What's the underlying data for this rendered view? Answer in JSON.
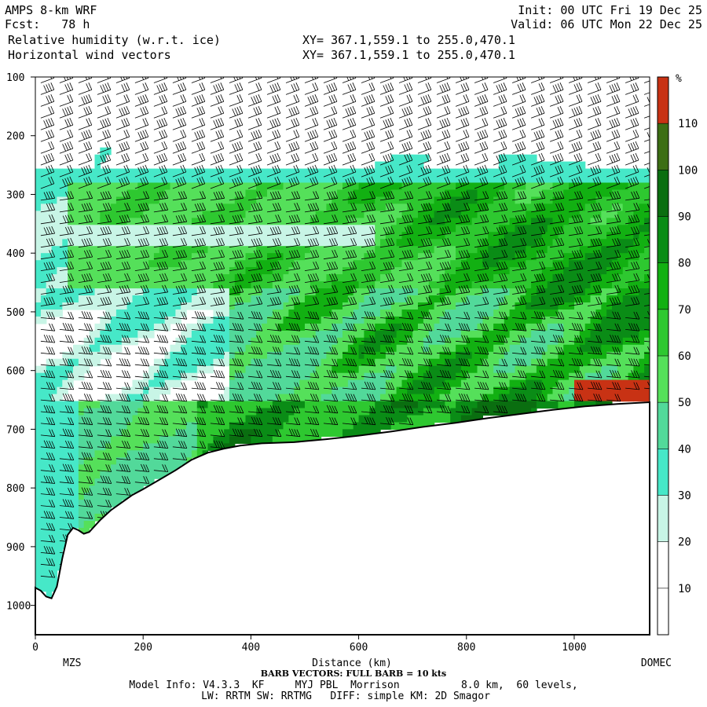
{
  "header": {
    "model": "AMPS 8-km WRF",
    "fcst_label": "Fcst:",
    "fcst_value": "78 h",
    "field1": "Relative humidity (w.r.t. ice)",
    "field2": "Horizontal wind vectors",
    "init": "Init: 00 UTC Fri 19 Dec 25",
    "valid": "Valid: 06 UTC Mon 22 Dec 25",
    "xy1": "XY= 367.1,559.1 to 255.0,470.1",
    "xy2": "XY= 367.1,559.1 to 255.0,470.1"
  },
  "footer": {
    "barb_note": "BARB VECTORS: FULL BARB = 10 kts",
    "model_info": "Model Info: V4.3.3  KF     MYJ PBL  Morrison          8.0 km,  60 levels,",
    "physics": "LW: RRTM SW: RRTMG   DIFF: simple KM: 2D Smagor"
  },
  "colors": {
    "band_10": "#ffffff",
    "band_20": "#ffffff",
    "band_30": "#c8f5e6",
    "band_40": "#46e8c8",
    "band_50": "#52d99a",
    "band_60": "#55e05a",
    "band_70": "#2ec830",
    "band_80": "#12b012",
    "band_90": "#0a8c16",
    "band_100": "#0a6e10",
    "band_110": "#3c6e14",
    "band_top": "#c83214",
    "terrain": "#ffffff"
  },
  "chart_data": {
    "type": "heatmap",
    "title": "Relative humidity (w.r.t. ice)",
    "xlabel": "Distance (km)",
    "ylabel": "",
    "xlim": [
      0,
      1140
    ],
    "ylim": [
      1050,
      100
    ],
    "x_ticks": [
      "0",
      "200",
      "400",
      "600",
      "800",
      "1000"
    ],
    "y_ticks": [
      "100",
      "200",
      "300",
      "400",
      "500",
      "600",
      "700",
      "800",
      "900",
      "1000"
    ],
    "endpoints": {
      "left": "MZS",
      "right": "DOMEC"
    },
    "colorbar": {
      "unit": "%",
      "labels": [
        "10",
        "20",
        "30",
        "40",
        "50",
        "60",
        "70",
        "80",
        "90",
        "100",
        "110"
      ]
    },
    "terrain_surface": {
      "x": [
        0,
        10,
        20,
        30,
        40,
        50,
        60,
        70,
        80,
        90,
        100,
        120,
        140,
        160,
        180,
        200,
        230,
        260,
        290,
        320,
        350,
        380,
        420,
        480,
        540,
        600,
        660,
        720,
        780,
        840,
        900,
        960,
        1020,
        1080,
        1140
      ],
      "p": [
        970,
        975,
        985,
        988,
        968,
        920,
        880,
        868,
        872,
        878,
        875,
        855,
        838,
        825,
        812,
        802,
        786,
        770,
        752,
        740,
        733,
        728,
        724,
        722,
        717,
        711,
        704,
        696,
        689,
        681,
        674,
        667,
        661,
        657,
        654
      ]
    },
    "rh_profile_notes": [
      {
        "p_range": [
          100,
          240
        ],
        "rh_band": "10-20"
      },
      {
        "p_range": [
          240,
          290
        ],
        "rh_band": "40-50"
      },
      {
        "p_range": [
          290,
          460
        ],
        "rh_band": "50-90"
      },
      {
        "p_range": [
          460,
          650
        ],
        "rh_band": "30-90"
      },
      {
        "p_range": [
          650,
          720
        ],
        "rh_band": "70-100"
      }
    ]
  }
}
